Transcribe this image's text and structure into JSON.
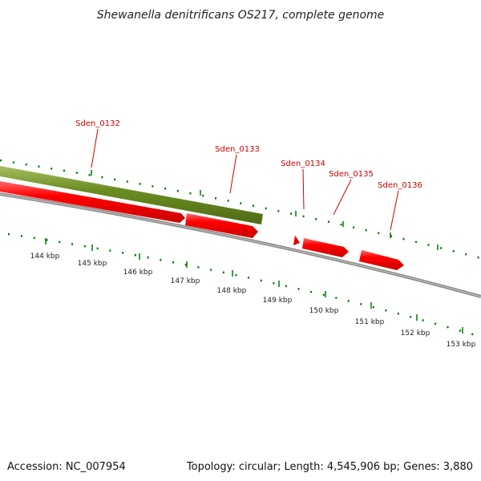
{
  "title": "Shewanella denitrificans OS217, complete genome",
  "footer": {
    "accession": "Accession: NC_007954",
    "summary": "Topology: circular; Length: 4,545,906 bp; Genes: 3,880"
  },
  "colors": {
    "gene_red": "#ff0000",
    "gene_dark_red": "#cc0000",
    "olive_feature": "#6b8e23",
    "tick_green": "#007700",
    "backbone": "#888888"
  },
  "genes": [
    {
      "id": "Sden_0132"
    },
    {
      "id": "Sden_0133"
    },
    {
      "id": "Sden_0134"
    },
    {
      "id": "Sden_0135"
    },
    {
      "id": "Sden_0136"
    }
  ],
  "scale": {
    "unit": "kbp",
    "labels": [
      "144 kbp",
      "145 kbp",
      "146 kbp",
      "147 kbp",
      "148 kbp",
      "149 kbp",
      "150 kbp",
      "151 kbp",
      "152 kbp",
      "153 kbp"
    ]
  }
}
